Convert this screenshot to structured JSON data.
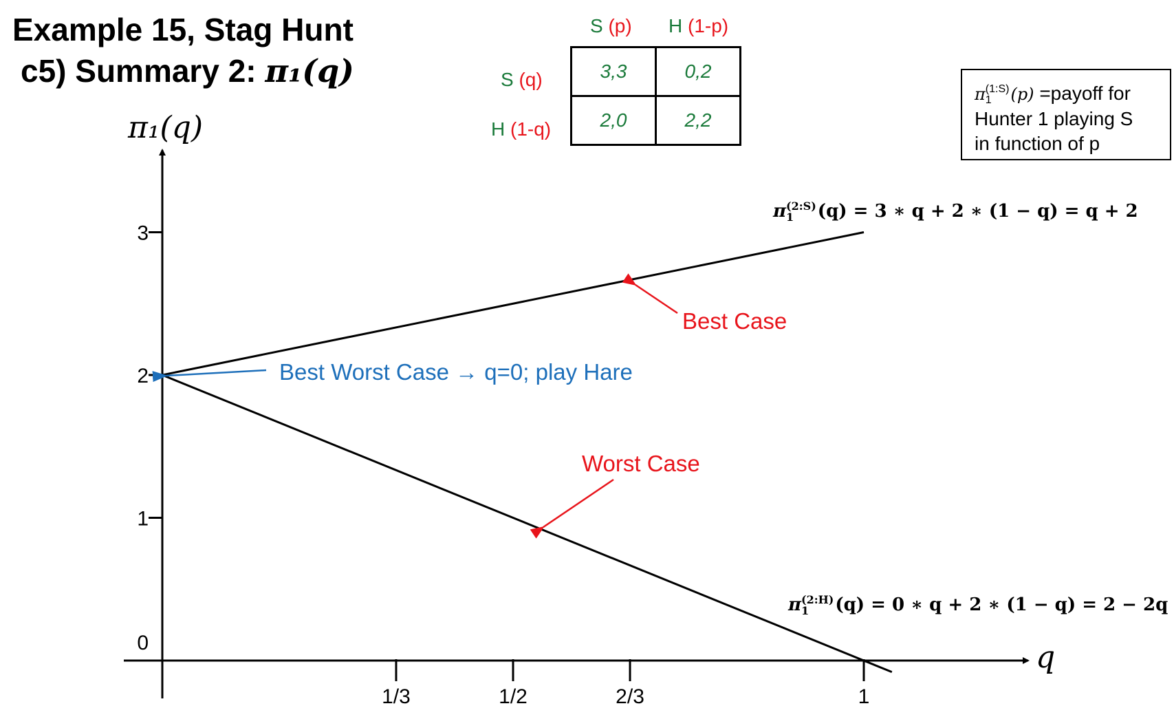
{
  "title": {
    "line1": "Example 15, Stag Hunt",
    "line2_prefix": "c5) Summary 2:  ",
    "line2_math": "π₁(q)"
  },
  "y_axis_label": "π₁(q)",
  "x_axis_label": "q",
  "payoff_table": {
    "col_headers": [
      {
        "strategy": "S",
        "prob": "(p)"
      },
      {
        "strategy": "H",
        "prob": "(1-p)"
      }
    ],
    "row_headers": [
      {
        "strategy": "S",
        "prob": "(q)"
      },
      {
        "strategy": "H",
        "prob": "(1-q)"
      }
    ],
    "cells": [
      [
        "3,3",
        "0,2"
      ],
      [
        "2,0",
        "2,2"
      ]
    ]
  },
  "note": {
    "symbol": "π",
    "sup": "(1:S)",
    "sub": "1",
    "arg": "(p)",
    "text1": " =payoff for",
    "text2": "Hunter 1 playing S",
    "text3": "in function of p"
  },
  "formula_top": {
    "sup": "(2:S)",
    "sub": "1",
    "expr": "(q) = 3 ∗ q + 2 ∗ (1 − q) = q + 2"
  },
  "formula_bottom": {
    "sup": "(2:H)",
    "sub": "1",
    "expr": "(q) = 0 ∗ q + 2 ∗ (1 − q) = 2 − 2q"
  },
  "annotations": {
    "best_case": "Best Case",
    "worst_case": "Worst Case",
    "best_worst_case": "Best Worst Case → q=0; play Hare"
  },
  "colors": {
    "green": "#1a7a3a",
    "red": "#e8141b",
    "blue": "#1d6fba"
  },
  "chart_data": {
    "type": "line",
    "x_ticks": [
      {
        "value": 0.3333,
        "label": "1/3"
      },
      {
        "value": 0.5,
        "label": "1/2"
      },
      {
        "value": 0.6667,
        "label": "2/3"
      },
      {
        "value": 1,
        "label": "1"
      }
    ],
    "y_ticks": [
      {
        "value": 0,
        "label": "0"
      },
      {
        "value": 1,
        "label": "1"
      },
      {
        "value": 2,
        "label": "2"
      },
      {
        "value": 3,
        "label": "3"
      }
    ],
    "xlim": [
      0,
      1.05
    ],
    "ylim": [
      -0.1,
      3.5
    ],
    "series": [
      {
        "x": [
          0,
          1.0
        ],
        "y": [
          2,
          3.0
        ],
        "color": "#000000"
      },
      {
        "x": [
          0,
          1.04
        ],
        "y": [
          2,
          -0.08
        ],
        "color": "#000000"
      }
    ]
  }
}
